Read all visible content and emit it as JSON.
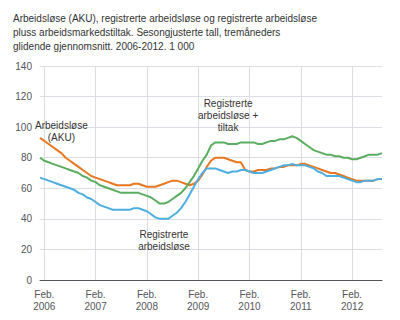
{
  "chart_data": {
    "type": "line",
    "title": "Arbeidsløse (AKU), registrerte arbeidsløse og registrerte arbeidsløse\npluss arbeidsmarkedstiltak. Sesongjusterte tall, tremåneders\nglidende gjennomsnitt. 2006-2012. 1 000",
    "categories": [
      null,
      "Feb.\n2006",
      null,
      null,
      null,
      null,
      null,
      null,
      null,
      null,
      null,
      null,
      null,
      "Feb.\n2007",
      null,
      null,
      null,
      null,
      null,
      null,
      null,
      null,
      null,
      null,
      null,
      "Feb.\n2008",
      null,
      null,
      null,
      null,
      null,
      null,
      null,
      null,
      null,
      null,
      null,
      "Feb.\n2009",
      null,
      null,
      null,
      null,
      null,
      null,
      null,
      null,
      null,
      null,
      null,
      "Feb.\n2010",
      null,
      null,
      null,
      null,
      null,
      null,
      null,
      null,
      null,
      null,
      null,
      "Feb.\n2011",
      null,
      null,
      null,
      null,
      null,
      null,
      null,
      null,
      null,
      null,
      null,
      "Feb.\n2012",
      null,
      null,
      null,
      null,
      null,
      null,
      null
    ],
    "series": [
      {
        "name": "Arbeidsløse\n(AKU)",
        "color": "#E87722",
        "values": [
          93,
          91,
          89,
          87,
          85,
          83,
          80,
          78,
          76,
          74,
          72,
          70,
          68,
          67,
          66,
          65,
          64,
          63,
          62,
          62,
          62,
          62,
          63,
          63,
          62,
          61,
          61,
          61,
          62,
          63,
          64,
          65,
          65,
          64,
          63,
          62,
          63,
          65,
          69,
          74,
          78,
          80,
          80,
          80,
          79,
          78,
          77,
          77,
          72,
          71,
          71,
          72,
          72,
          72,
          73,
          73,
          74,
          74,
          75,
          75,
          75,
          76,
          76,
          75,
          74,
          73,
          72,
          71,
          70,
          70,
          69,
          68,
          67,
          66,
          65,
          65,
          65,
          65,
          65,
          66,
          66
        ]
      },
      {
        "name": "Registrerte\narbeidsløse",
        "color": "#4DAEDF",
        "values": [
          67,
          66,
          65,
          64,
          63,
          62,
          61,
          60,
          59,
          57,
          56,
          54,
          53,
          51,
          49,
          48,
          47,
          46,
          46,
          46,
          46,
          46,
          47,
          47,
          46,
          45,
          43,
          41,
          40,
          40,
          40,
          42,
          44,
          47,
          51,
          56,
          61,
          66,
          70,
          73,
          73,
          73,
          72,
          71,
          70,
          71,
          71,
          72,
          72,
          71,
          70,
          70,
          70,
          71,
          72,
          73,
          74,
          75,
          75,
          76,
          75,
          75,
          75,
          74,
          73,
          71,
          70,
          68,
          68,
          68,
          68,
          67,
          66,
          65,
          64,
          64,
          65,
          65,
          65,
          66,
          66
        ]
      },
      {
        "name": "Registrerte\narbeidsløse +\ntiltak",
        "color": "#5BAD5F",
        "values": [
          80,
          78,
          77,
          76,
          75,
          74,
          73,
          72,
          71,
          70,
          68,
          67,
          65,
          64,
          62,
          61,
          60,
          59,
          58,
          57,
          57,
          57,
          57,
          57,
          56,
          55,
          54,
          52,
          50,
          50,
          51,
          53,
          55,
          57,
          60,
          64,
          68,
          73,
          78,
          82,
          88,
          90,
          90,
          90,
          89,
          89,
          89,
          90,
          90,
          90,
          90,
          89,
          89,
          90,
          91,
          91,
          92,
          92,
          93,
          94,
          93,
          91,
          89,
          87,
          85,
          84,
          83,
          82,
          82,
          81,
          81,
          80,
          80,
          79,
          79,
          80,
          81,
          82,
          82,
          82,
          83
        ]
      }
    ],
    "ylim": [
      0,
      140
    ],
    "yticks": [
      0,
      20,
      40,
      60,
      80,
      100,
      120,
      140
    ],
    "grid": true
  }
}
